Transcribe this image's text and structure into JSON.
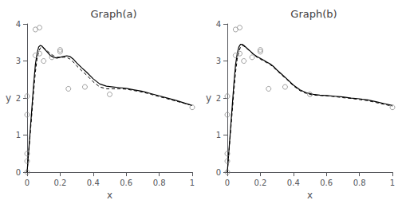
{
  "chart_data": [
    {
      "type": "line",
      "title": "Graph(a)",
      "xlabel": "x",
      "ylabel": "y",
      "xlim": [
        0,
        1
      ],
      "ylim": [
        0,
        4
      ],
      "xticks": [
        0,
        0.2,
        0.4,
        0.6,
        0.8,
        1
      ],
      "yticks": [
        0,
        1,
        2,
        3,
        4
      ],
      "grid": false,
      "series": [
        {
          "type": "scatter",
          "marker": "circle",
          "color": "#888888",
          "x": [
            0.0,
            0.0,
            0.0,
            0.0,
            0.0,
            0.05,
            0.05,
            0.075,
            0.075,
            0.1,
            0.15,
            0.2,
            0.2,
            0.25,
            0.35,
            0.5,
            1.0
          ],
          "values": [
            0.0,
            0.3,
            0.5,
            1.55,
            2.05,
            3.15,
            3.85,
            3.9,
            3.2,
            3.0,
            3.1,
            3.25,
            3.3,
            2.25,
            2.3,
            2.1,
            1.75
          ]
        },
        {
          "type": "line",
          "line_style": "solid",
          "color": "#000000",
          "x": [
            0.0,
            0.005,
            0.01,
            0.02,
            0.03,
            0.04,
            0.05,
            0.06,
            0.07,
            0.08,
            0.09,
            0.1,
            0.12,
            0.14,
            0.16,
            0.18,
            0.2,
            0.22,
            0.24,
            0.26,
            0.28,
            0.3,
            0.33,
            0.36,
            0.4,
            0.44,
            0.48,
            0.52,
            0.56,
            0.6,
            0.65,
            0.7,
            0.75,
            0.8,
            0.85,
            0.9,
            0.95,
            1.0
          ],
          "values": [
            0.0,
            0.3,
            0.6,
            1.2,
            1.8,
            2.4,
            2.9,
            3.2,
            3.38,
            3.42,
            3.4,
            3.35,
            3.25,
            3.15,
            3.1,
            3.08,
            3.1,
            3.12,
            3.14,
            3.12,
            3.05,
            2.95,
            2.82,
            2.7,
            2.52,
            2.38,
            2.32,
            2.3,
            2.28,
            2.26,
            2.22,
            2.18,
            2.12,
            2.06,
            2.0,
            1.94,
            1.87,
            1.8
          ]
        },
        {
          "type": "line",
          "line_style": "dashed",
          "color": "#000000",
          "x": [
            0.0,
            0.005,
            0.01,
            0.02,
            0.03,
            0.04,
            0.05,
            0.06,
            0.07,
            0.08,
            0.09,
            0.1,
            0.12,
            0.14,
            0.16,
            0.18,
            0.2,
            0.22,
            0.24,
            0.26,
            0.28,
            0.3,
            0.33,
            0.36,
            0.4,
            0.44,
            0.48,
            0.52,
            0.56,
            0.6,
            0.65,
            0.7,
            0.75,
            0.8,
            0.85,
            0.9,
            0.95,
            1.0
          ],
          "values": [
            0.0,
            0.28,
            0.56,
            1.1,
            1.65,
            2.2,
            2.7,
            3.05,
            3.25,
            3.35,
            3.38,
            3.35,
            3.28,
            3.2,
            3.14,
            3.1,
            3.1,
            3.1,
            3.1,
            3.05,
            2.97,
            2.87,
            2.74,
            2.62,
            2.44,
            2.3,
            2.25,
            2.25,
            2.25,
            2.24,
            2.2,
            2.16,
            2.1,
            2.04,
            1.98,
            1.92,
            1.86,
            1.8
          ]
        }
      ]
    },
    {
      "type": "line",
      "title": "Graph(b)",
      "xlabel": "x",
      "ylabel": "y",
      "xlim": [
        0,
        1
      ],
      "ylim": [
        0,
        4
      ],
      "xticks": [
        0,
        0.2,
        0.4,
        0.6,
        0.8,
        1
      ],
      "yticks": [
        0,
        1,
        2,
        3,
        4
      ],
      "grid": false,
      "series": [
        {
          "type": "scatter",
          "marker": "circle",
          "color": "#888888",
          "x": [
            0.0,
            0.0,
            0.0,
            0.0,
            0.0,
            0.05,
            0.05,
            0.075,
            0.075,
            0.1,
            0.15,
            0.2,
            0.2,
            0.25,
            0.35,
            0.5,
            1.0
          ],
          "values": [
            0.0,
            0.3,
            0.5,
            1.55,
            2.05,
            3.15,
            3.85,
            3.9,
            3.2,
            3.0,
            3.1,
            3.25,
            3.3,
            2.25,
            2.3,
            2.1,
            1.75
          ]
        },
        {
          "type": "line",
          "line_style": "solid",
          "color": "#000000",
          "x": [
            0.0,
            0.005,
            0.01,
            0.02,
            0.03,
            0.04,
            0.05,
            0.06,
            0.07,
            0.08,
            0.09,
            0.1,
            0.12,
            0.14,
            0.16,
            0.18,
            0.2,
            0.22,
            0.24,
            0.26,
            0.28,
            0.3,
            0.33,
            0.36,
            0.4,
            0.44,
            0.48,
            0.52,
            0.56,
            0.6,
            0.65,
            0.7,
            0.75,
            0.8,
            0.85,
            0.9,
            0.95,
            1.0
          ],
          "values": [
            0.0,
            0.3,
            0.6,
            1.2,
            1.8,
            2.4,
            2.9,
            3.2,
            3.38,
            3.45,
            3.45,
            3.42,
            3.34,
            3.26,
            3.18,
            3.12,
            3.07,
            3.02,
            2.97,
            2.92,
            2.85,
            2.76,
            2.64,
            2.52,
            2.35,
            2.22,
            2.14,
            2.1,
            2.08,
            2.07,
            2.05,
            2.03,
            2.0,
            1.98,
            1.95,
            1.9,
            1.85,
            1.8
          ]
        },
        {
          "type": "line",
          "line_style": "dashed",
          "color": "#000000",
          "x": [
            0.0,
            0.005,
            0.01,
            0.02,
            0.03,
            0.04,
            0.05,
            0.06,
            0.07,
            0.08,
            0.09,
            0.1,
            0.12,
            0.14,
            0.16,
            0.18,
            0.2,
            0.22,
            0.24,
            0.26,
            0.28,
            0.3,
            0.33,
            0.36,
            0.4,
            0.44,
            0.48,
            0.52,
            0.56,
            0.6,
            0.65,
            0.7,
            0.75,
            0.8,
            0.85,
            0.9,
            0.95,
            1.0
          ],
          "values": [
            0.0,
            0.28,
            0.56,
            1.1,
            1.65,
            2.2,
            2.7,
            3.05,
            3.25,
            3.38,
            3.42,
            3.4,
            3.33,
            3.25,
            3.17,
            3.1,
            3.05,
            3.0,
            2.95,
            2.9,
            2.83,
            2.74,
            2.62,
            2.5,
            2.33,
            2.2,
            2.12,
            2.08,
            2.07,
            2.06,
            2.04,
            2.01,
            1.99,
            1.96,
            1.93,
            1.88,
            1.83,
            1.78
          ]
        }
      ]
    }
  ]
}
